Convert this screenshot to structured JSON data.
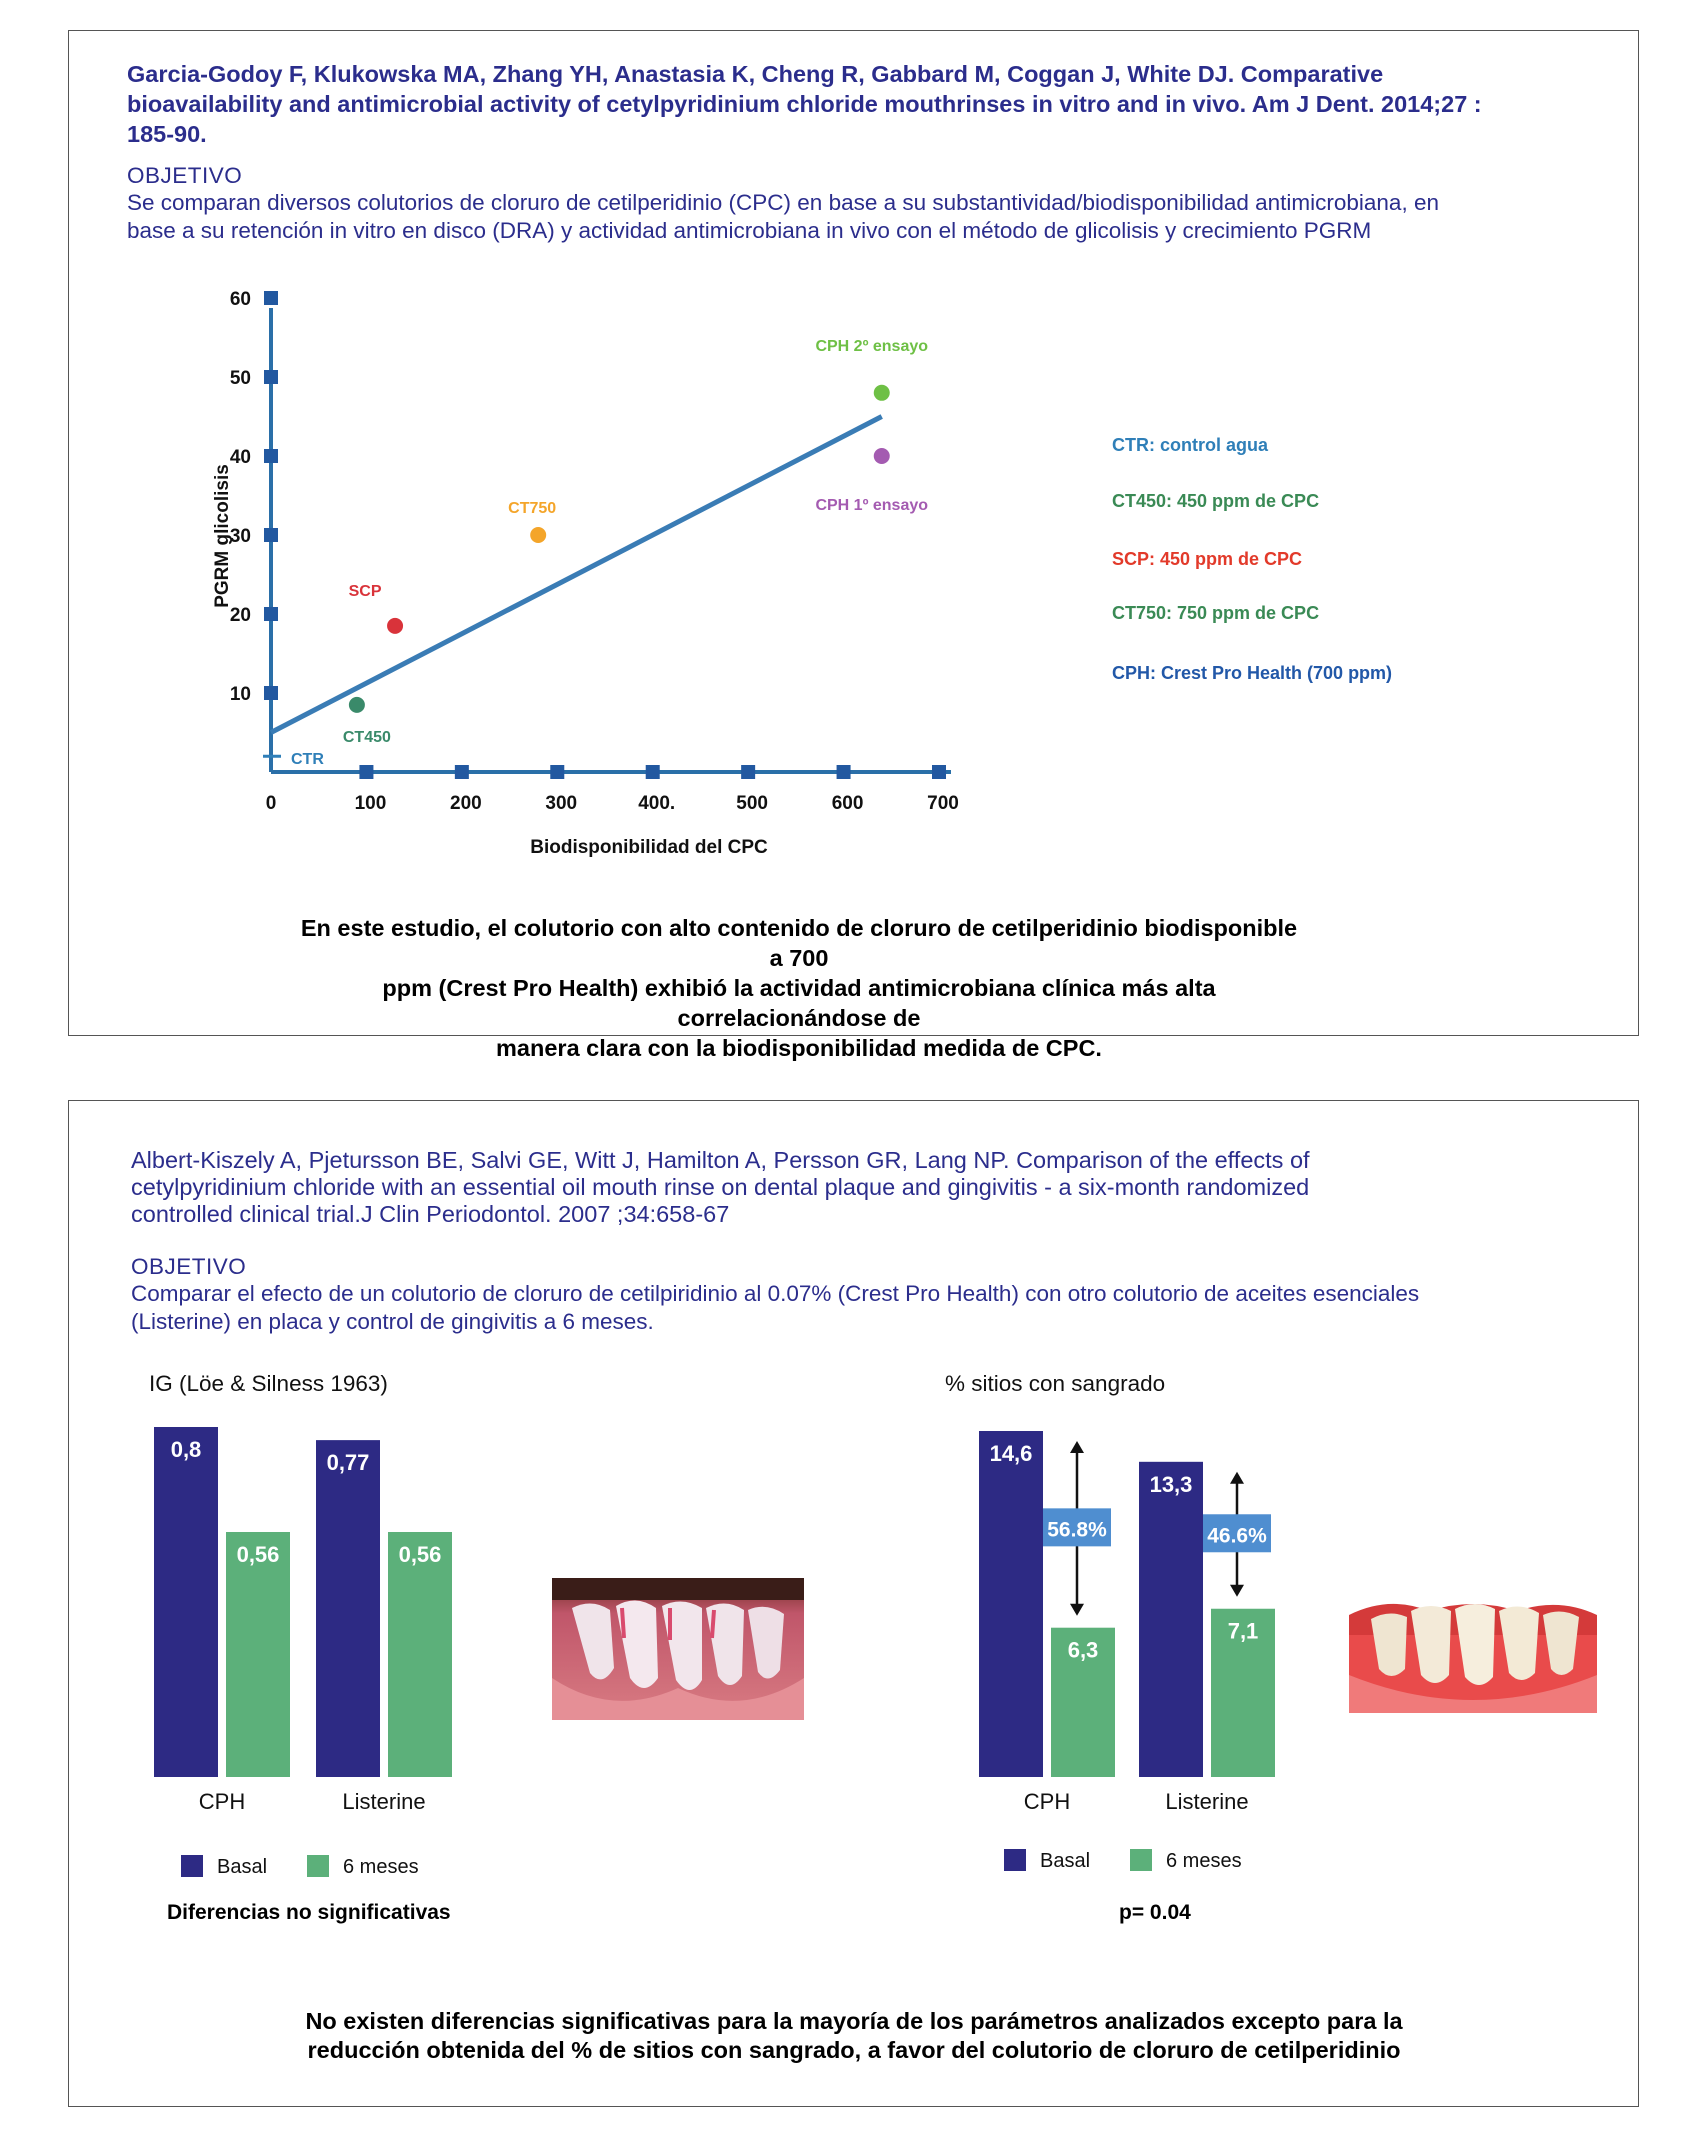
{
  "panel1": {
    "reference": "Garcia-Godoy F, Klukowska MA, Zhang YH, Anastasia K, Cheng R, Gabbard M, Coggan J, White DJ. Comparative bioavailability and antimicrobial activity of cetylpyridinium chloride mouthrinses in vitro and in vivo. Am J Dent. 2014;27 : 185-90.",
    "reference_lines": [
      "Garcia-Godoy F, Klukowska MA, Zhang YH, Anastasia K, Cheng R, Gabbard M, Coggan J, White DJ. Comparative",
      "bioavailability and antimicrobial activity of cetylpyridinium chloride mouthrinses in vitro and in vivo. Am J Dent. 2014;27 :",
      "185-90."
    ],
    "objective_heading": "OBJETIVO",
    "objective_lines": [
      "Se comparan diversos colutorios de cloruro de cetilperidinio (CPC) en base a su substantividad/biodisponibilidad antimicrobiana, en",
      "base a su retención in vitro en disco (DRA) y actividad antimicrobiana in vivo con el método de glicolisis y crecimiento PGRM"
    ],
    "legend": [
      {
        "text": "CTR: control agua",
        "color": "#2f7fb8"
      },
      {
        "text": "CT450: 450 ppm de CPC",
        "color": "#3a8a55"
      },
      {
        "text": "SCP: 450 ppm de CPC",
        "color": "#e23a2a"
      },
      {
        "text": "CT750: 750 ppm de CPC",
        "color": "#3a8a55"
      },
      {
        "text": "CPH: Crest Pro Health (700 ppm)",
        "color": "#2258a8"
      }
    ],
    "conclusion_lines": [
      "En este estudio,  el colutorio con alto contenido de cloruro de cetilperidinio biodisponible a 700",
      "ppm (Crest Pro Health) exhibió la actividad antimicrobiana clínica más alta  correlacionándose de",
      "manera clara con la biodisponibilidad medida de CPC."
    ]
  },
  "panel2": {
    "reference_lines": [
      "Albert-Kiszely A, Pjetursson BE, Salvi GE, Witt J, Hamilton A, Persson GR, Lang NP. Comparison of the effects of",
      "cetylpyridinium chloride with an essential oil mouth rinse on dental plaque and gingivitis - a six-month randomized",
      "controlled clinical trial.J Clin Periodontol. 2007 ;34:658-67"
    ],
    "objective_heading": "OBJETIVO",
    "objective_lines": [
      "Comparar el efecto de un colutorio de cloruro de cetilpiridinio al 0.07% (Crest Pro Health) con otro colutorio de aceites esenciales",
      "(Listerine) en placa y control de gingivitis a 6 meses."
    ],
    "note_left": "Diferencias no significativas",
    "note_right": "p= 0.04",
    "conclusion_lines": [
      "No existen diferencias significativas para la mayoría de los parámetros analizados excepto para la",
      "reducción obtenida del % de sitios con sangrado, a favor del colutorio de cloruro de cetilperidinio"
    ],
    "legend_basal": "Basal",
    "legend_6m": "6 meses"
  },
  "colors": {
    "text_blue": "#2b2d8c",
    "axis": "#2a6fa8",
    "regression_line": "#3a7cb5",
    "bar_basal": "#2d2a84",
    "bar_6m": "#5cb07a",
    "reduction_box": "#4f8ed0"
  },
  "chart_data": [
    {
      "type": "scatter",
      "title": "",
      "xlabel": "Biodisponibilidad del CPC",
      "ylabel": "PGRM glicolisis",
      "xlim": [
        0,
        700
      ],
      "ylim": [
        0,
        60
      ],
      "x_ticks": [
        "0",
        "100",
        "200",
        "300",
        "400.",
        "500",
        "600",
        "700"
      ],
      "x_tick_values": [
        0,
        100,
        200,
        300,
        400,
        500,
        600,
        700
      ],
      "y_ticks": [
        "10",
        "20",
        "30",
        "40",
        "50",
        "60"
      ],
      "y_tick_values": [
        10,
        20,
        30,
        40,
        50,
        60
      ],
      "points": [
        {
          "label": "CTR",
          "x": 0,
          "y": 2,
          "color": "#2f7fb8",
          "marker": "tick"
        },
        {
          "label": "CT450",
          "x": 90,
          "y": 8.5,
          "color": "#3a8a6a"
        },
        {
          "label": "SCP",
          "x": 130,
          "y": 18.5,
          "color": "#d9333a"
        },
        {
          "label": "CT750",
          "x": 280,
          "y": 30,
          "color": "#f4a52a"
        },
        {
          "label": "CPH 2º ensayo",
          "x": 640,
          "y": 48,
          "color": "#6ec045"
        },
        {
          "label": "CPH 1º ensayo",
          "x": 640,
          "y": 40,
          "color": "#a45bb1"
        }
      ],
      "trendline": {
        "x": [
          0,
          640
        ],
        "y": [
          5,
          45
        ]
      }
    },
    {
      "type": "bar",
      "title": "IG (Löe & Silness 1963)",
      "categories": [
        "CPH",
        "Listerine"
      ],
      "ylim": [
        0,
        0.8
      ],
      "series": [
        {
          "name": "Basal",
          "values": [
            0.8,
            0.77
          ],
          "labels": [
            "0,8",
            "0,77"
          ]
        },
        {
          "name": "6 meses",
          "values": [
            0.56,
            0.56
          ],
          "labels": [
            "0,56",
            "0,56"
          ]
        }
      ]
    },
    {
      "type": "bar",
      "title": "% sitios con sangrado",
      "categories": [
        "CPH",
        "Listerine"
      ],
      "ylim": [
        0,
        14.6
      ],
      "series": [
        {
          "name": "Basal",
          "values": [
            14.6,
            13.3
          ],
          "labels": [
            "14,6",
            "13,3"
          ]
        },
        {
          "name": "6 meses",
          "values": [
            6.3,
            7.1
          ],
          "labels": [
            "6,3",
            "7,1"
          ]
        }
      ],
      "reductions": [
        "56.8%",
        "46.6%"
      ]
    }
  ]
}
